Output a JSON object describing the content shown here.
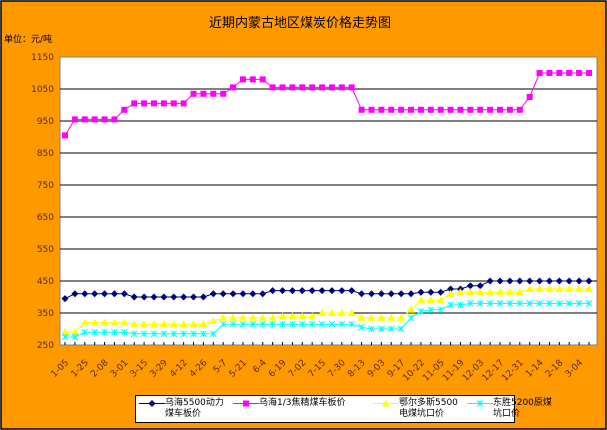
{
  "chart_data": {
    "type": "line",
    "title": "近期内蒙古地区煤炭价格走势图",
    "unit_label": "单位：元/吨",
    "ylim": [
      250,
      1150
    ],
    "yticks": [
      "1150",
      "1050",
      "950",
      "850",
      "750",
      "650",
      "550",
      "450",
      "350",
      "250"
    ],
    "ytick_values": [
      1150,
      1050,
      950,
      850,
      750,
      650,
      550,
      450,
      350,
      250
    ],
    "grid": true,
    "legend_position": "bottom",
    "x_labels": [
      "1-05",
      "1-25",
      "2-08",
      "3-01",
      "3-15",
      "3-29",
      "4-12",
      "4-26",
      "5-7",
      "5-21",
      "6-4",
      "6-19",
      "7-02",
      "7-15",
      "7-30",
      "8-13",
      "9-03",
      "9-17",
      "10-22",
      "11-05",
      "11-19",
      "12-03",
      "12-17",
      "12-31",
      "1-14",
      "2-18",
      "3-04"
    ],
    "point_count": 54,
    "series": [
      {
        "name": "乌海5500动力煤车板价",
        "color": "#000080",
        "marker": "diamond",
        "values": [
          395,
          410,
          410,
          410,
          410,
          410,
          410,
          400,
          400,
          400,
          400,
          400,
          400,
          400,
          400,
          410,
          410,
          410,
          410,
          410,
          410,
          420,
          420,
          420,
          420,
          420,
          420,
          420,
          420,
          420,
          410,
          410,
          410,
          410,
          410,
          410,
          415,
          415,
          415,
          425,
          425,
          435,
          435,
          450,
          450,
          450,
          450,
          450,
          450,
          450,
          450,
          450,
          450,
          450
        ]
      },
      {
        "name": "乌海1/3焦精煤车板价",
        "color": "#FF00FF",
        "marker": "square",
        "values": [
          905,
          955,
          955,
          955,
          955,
          955,
          985,
          1005,
          1005,
          1005,
          1005,
          1005,
          1005,
          1035,
          1035,
          1035,
          1035,
          1055,
          1080,
          1080,
          1080,
          1055,
          1055,
          1055,
          1055,
          1055,
          1055,
          1055,
          1055,
          1055,
          985,
          985,
          985,
          985,
          985,
          985,
          985,
          985,
          985,
          985,
          985,
          985,
          985,
          985,
          985,
          985,
          985,
          1025,
          1100,
          1100,
          1100,
          1100,
          1100,
          1100
        ]
      },
      {
        "name": "鄂尔多斯5500电煤坑口价",
        "color": "#FFFF00",
        "marker": "triangle",
        "values": [
          290,
          290,
          320,
          320,
          320,
          320,
          320,
          315,
          315,
          315,
          315,
          315,
          315,
          315,
          315,
          325,
          335,
          335,
          335,
          335,
          335,
          335,
          340,
          340,
          340,
          340,
          350,
          350,
          350,
          350,
          335,
          335,
          335,
          335,
          335,
          360,
          390,
          390,
          390,
          410,
          415,
          415,
          415,
          415,
          415,
          415,
          415,
          425,
          425,
          425,
          425,
          425,
          425,
          425
        ]
      },
      {
        "name": "东胜5200原煤坑口价",
        "color": "#00FFFF",
        "marker": "star",
        "values": [
          275,
          275,
          290,
          290,
          290,
          290,
          290,
          285,
          285,
          285,
          285,
          285,
          285,
          285,
          285,
          285,
          315,
          315,
          315,
          315,
          315,
          315,
          315,
          315,
          315,
          315,
          315,
          315,
          315,
          315,
          305,
          300,
          300,
          300,
          300,
          335,
          355,
          360,
          360,
          375,
          375,
          380,
          380,
          380,
          380,
          380,
          380,
          380,
          380,
          380,
          380,
          380,
          380,
          380
        ]
      }
    ]
  }
}
